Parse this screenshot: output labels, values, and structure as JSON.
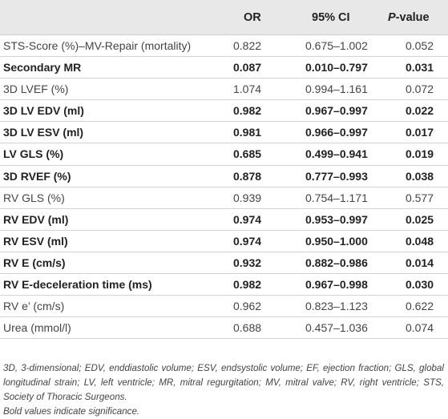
{
  "table": {
    "headers": {
      "label": "",
      "or": "OR",
      "ci": "95% CI",
      "p": "P",
      "p_suffix": "-value"
    },
    "rows": [
      {
        "label": "STS-Score (%)–MV-Repair (mortality)",
        "or": "0.822",
        "ci": "0.675–1.002",
        "p": "0.052",
        "significant": false
      },
      {
        "label": "Secondary MR",
        "or": "0.087",
        "ci": "0.010–0.797",
        "p": "0.031",
        "significant": true
      },
      {
        "label": "3D LVEF (%)",
        "or": "1.074",
        "ci": "0.994–1.161",
        "p": "0.072",
        "significant": false
      },
      {
        "label": "3D LV EDV (ml)",
        "or": "0.982",
        "ci": "0.967–0.997",
        "p": "0.022",
        "significant": true
      },
      {
        "label": "3D LV ESV (ml)",
        "or": "0.981",
        "ci": "0.966–0.997",
        "p": "0.017",
        "significant": true
      },
      {
        "label": "LV GLS (%)",
        "or": "0.685",
        "ci": "0.499–0.941",
        "p": "0.019",
        "significant": true
      },
      {
        "label": "3D RVEF (%)",
        "or": "0.878",
        "ci": "0.777–0.993",
        "p": "0.038",
        "significant": true
      },
      {
        "label": "RV GLS (%)",
        "or": "0.939",
        "ci": "0.754–1.171",
        "p": "0.577",
        "significant": false
      },
      {
        "label": "RV EDV (ml)",
        "or": "0.974",
        "ci": "0.953–0.997",
        "p": "0.025",
        "significant": true
      },
      {
        "label": "RV ESV (ml)",
        "or": "0.974",
        "ci": "0.950–1.000",
        "p": "0.048",
        "significant": true
      },
      {
        "label": "RV E (cm/s)",
        "or": "0.932",
        "ci": "0.882–0.986",
        "p": "0.014",
        "significant": true
      },
      {
        "label": "RV E-deceleration time (ms)",
        "or": "0.982",
        "ci": "0.967–0.998",
        "p": "0.030",
        "significant": true
      },
      {
        "label": "RV e’ (cm/s)",
        "or": "0.962",
        "ci": "0.823–1.123",
        "p": "0.622",
        "significant": false
      },
      {
        "label": "Urea (mmol/l)",
        "or": "0.688",
        "ci": "0.457–1.036",
        "p": "0.074",
        "significant": false
      }
    ]
  },
  "footnote": {
    "abbreviations": "3D, 3-dimensional; EDV, enddiastolic volume; ESV, endsystolic volume; EF, ejection fraction; GLS, global longitudinal strain; LV, left ventricle; MR, mitral regurgitation; MV, mitral valve; RV, right ventricle; STS, Society of Thoracic Surgeons.",
    "note": "Bold values indicate significance."
  },
  "colors": {
    "header_bg": "#e8e8e8",
    "rule": "#d3d3d3",
    "text": "#333333"
  }
}
